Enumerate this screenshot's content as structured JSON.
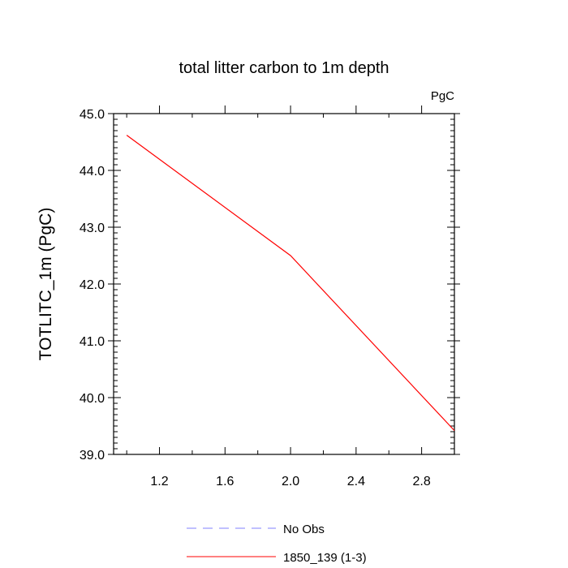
{
  "chart_data": {
    "type": "line",
    "title": "total litter carbon to 1m depth",
    "units_label": "PgC",
    "ylabel": "TOTLITC_1m  (PgC)",
    "xlabel": "",
    "xlim": [
      0.92,
      3.0
    ],
    "ylim": [
      39.0,
      45.0
    ],
    "x_ticks": [
      1.2,
      1.6,
      2.0,
      2.4,
      2.8
    ],
    "x_tick_labels": [
      "1.2",
      "1.6",
      "2.0",
      "2.4",
      "2.8"
    ],
    "x_minor_ticks": [
      1.0,
      1.4,
      1.8,
      2.2,
      2.6,
      3.0
    ],
    "y_ticks": [
      39.0,
      40.0,
      41.0,
      42.0,
      43.0,
      44.0,
      45.0
    ],
    "y_tick_labels": [
      "39.0",
      "40.0",
      "41.0",
      "42.0",
      "43.0",
      "44.0",
      "45.0"
    ],
    "grid": false,
    "legend_position": "bottom",
    "series": [
      {
        "name": "No Obs",
        "color": "#8080ff",
        "dashed": true,
        "x": [],
        "y": []
      },
      {
        "name": "1850_139 (1-3)",
        "color": "#ff0000",
        "dashed": false,
        "x": [
          1.0,
          2.0,
          3.0
        ],
        "y": [
          44.62,
          42.5,
          39.42
        ]
      }
    ]
  }
}
